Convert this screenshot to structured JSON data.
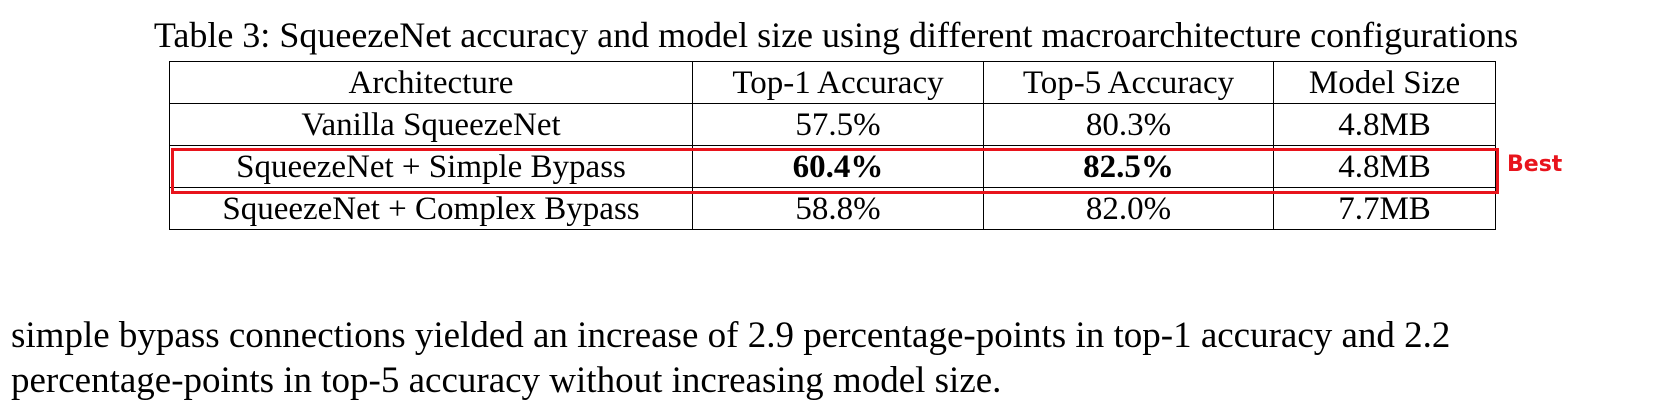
{
  "caption": "Table 3: SqueezeNet accuracy and model size using different macroarchitecture configurations",
  "table": {
    "header": [
      "Architecture",
      "Top-1 Accuracy",
      "Top-5 Accuracy",
      "Model Size"
    ],
    "rows": [
      [
        "Vanilla SqueezeNet",
        "57.5%",
        "80.3%",
        "4.8MB"
      ],
      [
        "SqueezeNet + Simple Bypass",
        "60.4%",
        "82.5%",
        "4.8MB"
      ],
      [
        "SqueezeNet + Complex Bypass",
        "58.8%",
        "82.0%",
        "7.7MB"
      ]
    ]
  },
  "annotation": "Best",
  "paragraph": [
    "simple bypass connections yielded an increase of 2.9 percentage-points in top-1 accuracy and 2.2",
    "percentage-points in top-5 accuracy without increasing model size."
  ]
}
